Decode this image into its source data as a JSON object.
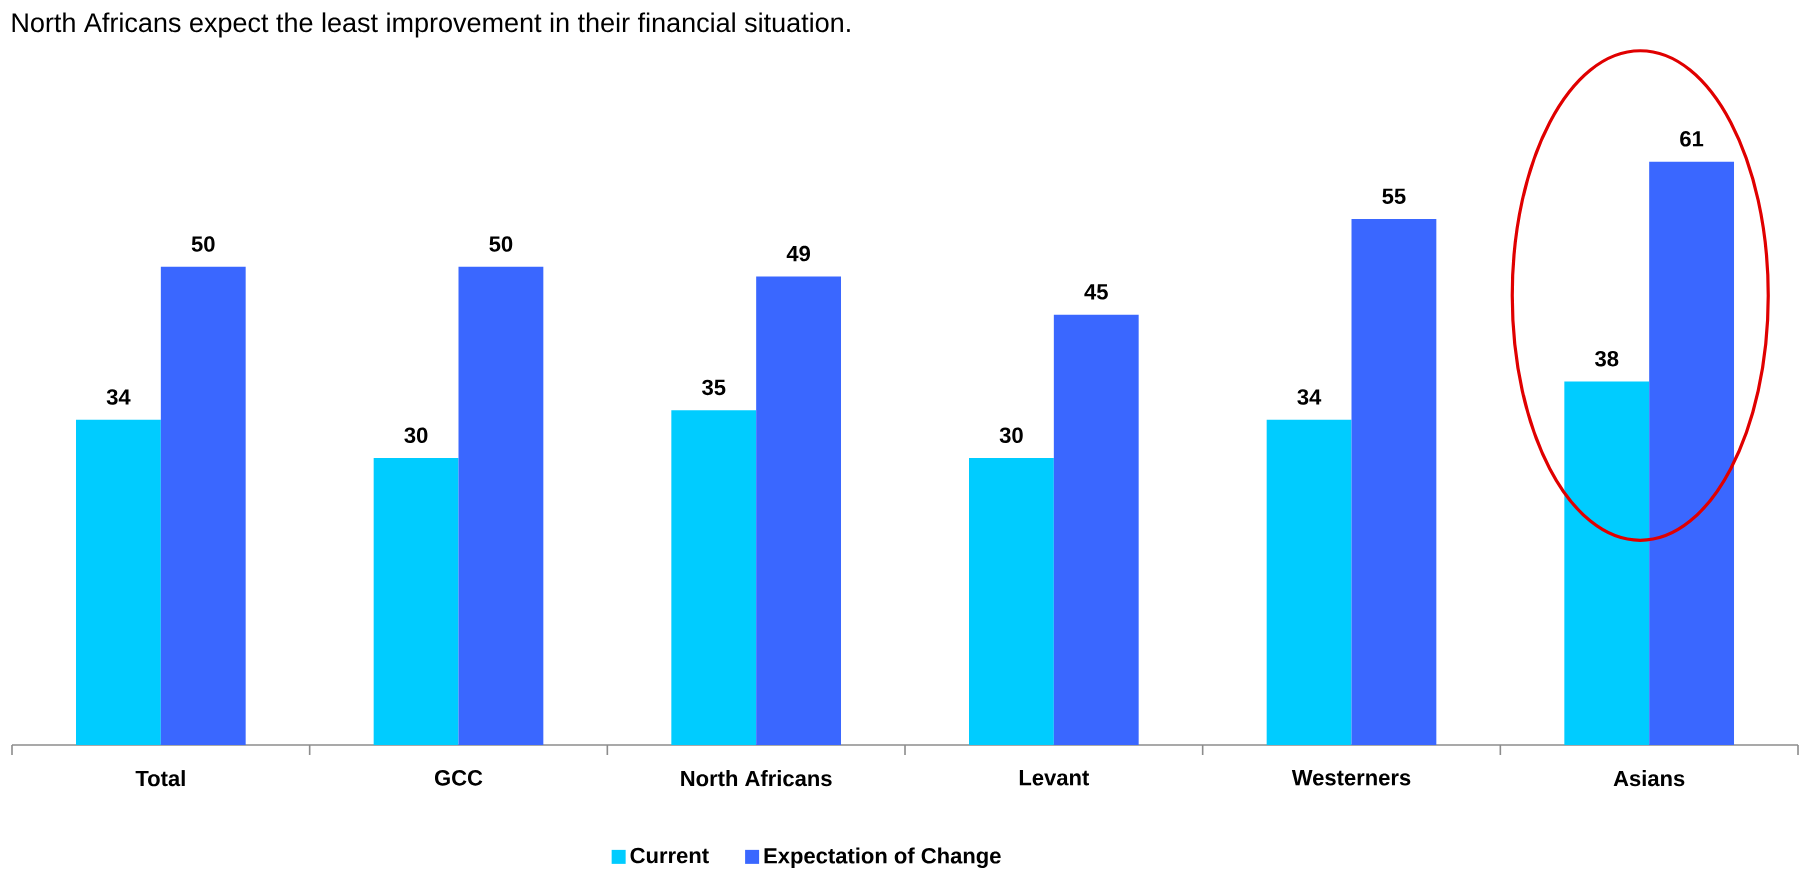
{
  "chart_data": {
    "type": "bar",
    "title": "North Africans expect the least improvement in their financial situation.",
    "categories": [
      "Total",
      "GCC",
      "North Africans",
      "Levant",
      "Westerners",
      "Asians"
    ],
    "series": [
      {
        "name": "Current",
        "color": "#00ccff",
        "values": [
          34,
          30,
          35,
          30,
          34,
          38
        ]
      },
      {
        "name": "Expectation of Change",
        "color": "#3a67ff",
        "values": [
          50,
          50,
          49,
          45,
          55,
          61
        ]
      }
    ],
    "data_labels": true,
    "legend": "bottom"
  }
}
